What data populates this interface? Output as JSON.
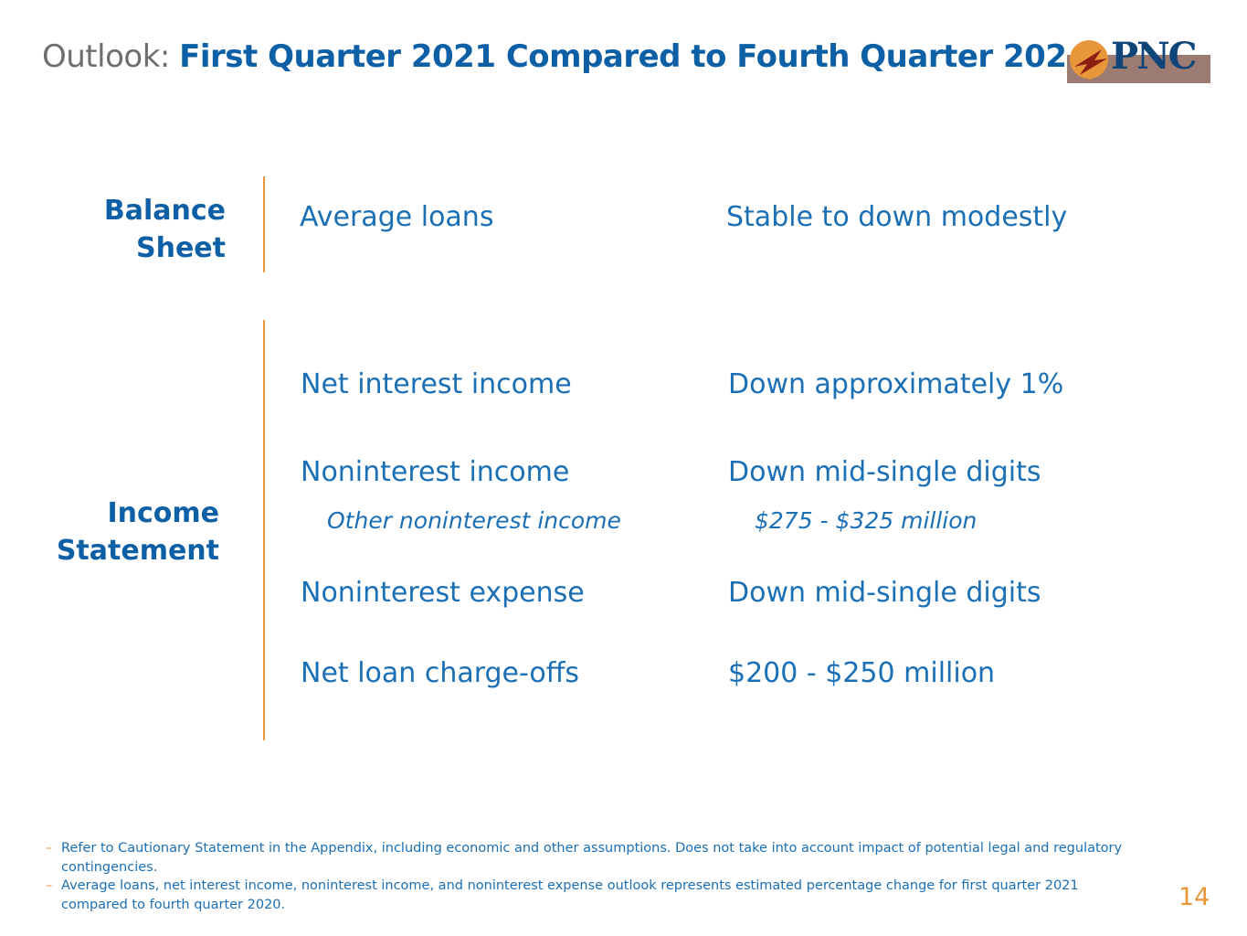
{
  "header": {
    "title_prefix": "Outlook:",
    "title_main": "First Quarter 2021 Compared to Fourth Quarter 2020",
    "logo_text": "PNC"
  },
  "balance_sheet": {
    "label_line1": "Balance",
    "label_line2": "Sheet",
    "rows": [
      {
        "label": "Average loans",
        "value": "Stable to down modestly"
      }
    ]
  },
  "income_statement": {
    "label_line1": "Income",
    "label_line2": "Statement",
    "rows": [
      {
        "label": "Net interest income",
        "value": "Down approximately 1%"
      },
      {
        "label": "Noninterest income",
        "value": "Down mid-single digits"
      },
      {
        "label": "Other noninterest income",
        "value": "$275 - $325 million"
      },
      {
        "label": "Noninterest expense",
        "value": "Down mid-single digits"
      },
      {
        "label": "Net loan charge-offs",
        "value": "$200 - $250 million"
      }
    ]
  },
  "footnotes": [
    "Refer to Cautionary Statement in the Appendix, including economic and other assumptions. Does not take into account impact of potential legal and regulatory contingencies.",
    "Average loans, net interest income, noninterest income, and noninterest expense outlook represents estimated percentage change for first quarter 2021 compared to fourth quarter 2020."
  ],
  "footnote_marker": "–",
  "page_number": "14",
  "colors": {
    "brand_blue": "#0d5fa6",
    "text_blue": "#1b6fb5",
    "accent_orange": "#e8963a",
    "title_gray": "#6d6e71"
  }
}
